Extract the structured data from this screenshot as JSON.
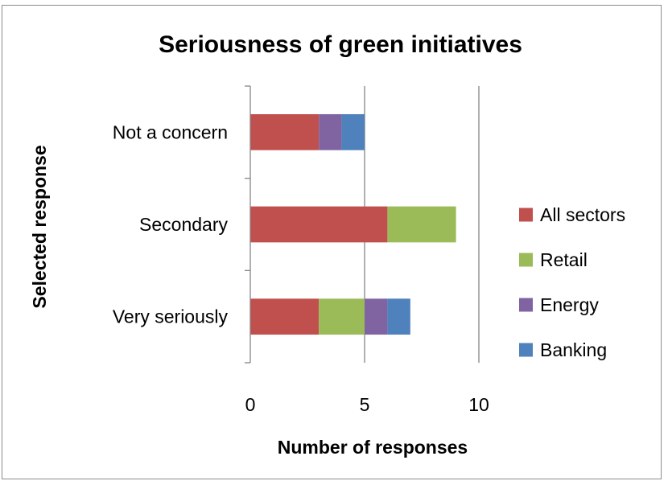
{
  "chart_data": {
    "type": "bar",
    "orientation": "horizontal",
    "stacked": true,
    "title": "Seriousness of green initiatives",
    "xlabel": "Number of responses",
    "ylabel": "Selected response",
    "categories": [
      "Very seriously",
      "Secondary",
      "Not a concern"
    ],
    "series": [
      {
        "name": "All sectors",
        "color": "#c0504d",
        "values": [
          3,
          6,
          3
        ]
      },
      {
        "name": "Retail",
        "color": "#9bbb59",
        "values": [
          2,
          3,
          0
        ]
      },
      {
        "name": "Energy",
        "color": "#8064a2",
        "values": [
          1,
          0,
          1
        ]
      },
      {
        "name": "Banking",
        "color": "#4f81bd",
        "values": [
          1,
          0,
          1
        ]
      }
    ],
    "xlim": [
      0,
      10
    ],
    "xticks": [
      0,
      5,
      10
    ],
    "xtick_labels": [
      "0",
      "5",
      "10"
    ],
    "grid": "vertical major gridlines",
    "legend_position": "right"
  }
}
